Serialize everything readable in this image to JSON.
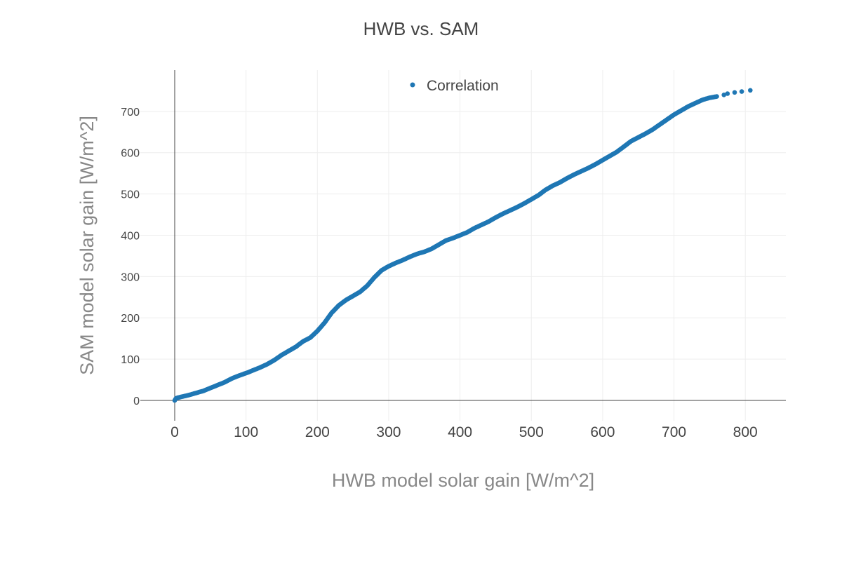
{
  "chart_data": {
    "type": "scatter",
    "title": "HWB vs. SAM",
    "xlabel": "HWB model solar gain [W/m^2]",
    "ylabel": "SAM model solar gain [W/m^2]",
    "xlim": [
      -40,
      855
    ],
    "ylim": [
      -20,
      800
    ],
    "xticks": [
      "0",
      "100",
      "200",
      "300",
      "400",
      "500",
      "600",
      "700",
      "800"
    ],
    "yticks": [
      "0",
      "100",
      "200",
      "300",
      "400",
      "500",
      "600",
      "700"
    ],
    "grid": true,
    "legend": {
      "position": "top-center",
      "entries": [
        "Correlation"
      ]
    },
    "series": [
      {
        "name": "Correlation",
        "color": "#1f77b4",
        "points": [
          [
            0,
            0
          ],
          [
            1,
            3
          ],
          [
            2,
            5
          ],
          [
            3,
            6
          ],
          [
            10,
            9
          ],
          [
            20,
            13
          ],
          [
            30,
            18
          ],
          [
            40,
            23
          ],
          [
            50,
            30
          ],
          [
            60,
            37
          ],
          [
            70,
            44
          ],
          [
            80,
            53
          ],
          [
            90,
            60
          ],
          [
            100,
            66
          ],
          [
            110,
            73
          ],
          [
            120,
            80
          ],
          [
            130,
            88
          ],
          [
            140,
            98
          ],
          [
            150,
            110
          ],
          [
            160,
            120
          ],
          [
            170,
            130
          ],
          [
            180,
            143
          ],
          [
            190,
            152
          ],
          [
            200,
            168
          ],
          [
            210,
            188
          ],
          [
            220,
            212
          ],
          [
            230,
            230
          ],
          [
            240,
            243
          ],
          [
            250,
            253
          ],
          [
            260,
            263
          ],
          [
            270,
            278
          ],
          [
            280,
            298
          ],
          [
            290,
            315
          ],
          [
            300,
            325
          ],
          [
            310,
            333
          ],
          [
            320,
            340
          ],
          [
            330,
            348
          ],
          [
            340,
            355
          ],
          [
            350,
            360
          ],
          [
            360,
            367
          ],
          [
            370,
            377
          ],
          [
            380,
            387
          ],
          [
            390,
            393
          ],
          [
            400,
            400
          ],
          [
            410,
            407
          ],
          [
            420,
            417
          ],
          [
            430,
            425
          ],
          [
            440,
            433
          ],
          [
            450,
            443
          ],
          [
            460,
            452
          ],
          [
            470,
            460
          ],
          [
            480,
            468
          ],
          [
            490,
            477
          ],
          [
            500,
            487
          ],
          [
            510,
            497
          ],
          [
            520,
            510
          ],
          [
            530,
            520
          ],
          [
            540,
            528
          ],
          [
            550,
            538
          ],
          [
            560,
            547
          ],
          [
            570,
            555
          ],
          [
            580,
            563
          ],
          [
            590,
            572
          ],
          [
            600,
            582
          ],
          [
            610,
            592
          ],
          [
            620,
            602
          ],
          [
            630,
            615
          ],
          [
            640,
            628
          ],
          [
            650,
            637
          ],
          [
            660,
            646
          ],
          [
            670,
            656
          ],
          [
            680,
            668
          ],
          [
            690,
            680
          ],
          [
            700,
            692
          ],
          [
            710,
            702
          ],
          [
            720,
            712
          ],
          [
            730,
            720
          ],
          [
            740,
            728
          ],
          [
            750,
            733
          ],
          [
            760,
            736
          ],
          [
            770,
            740
          ],
          [
            775,
            743
          ],
          [
            785,
            746
          ],
          [
            795,
            748
          ],
          [
            807,
            751
          ]
        ]
      }
    ]
  }
}
